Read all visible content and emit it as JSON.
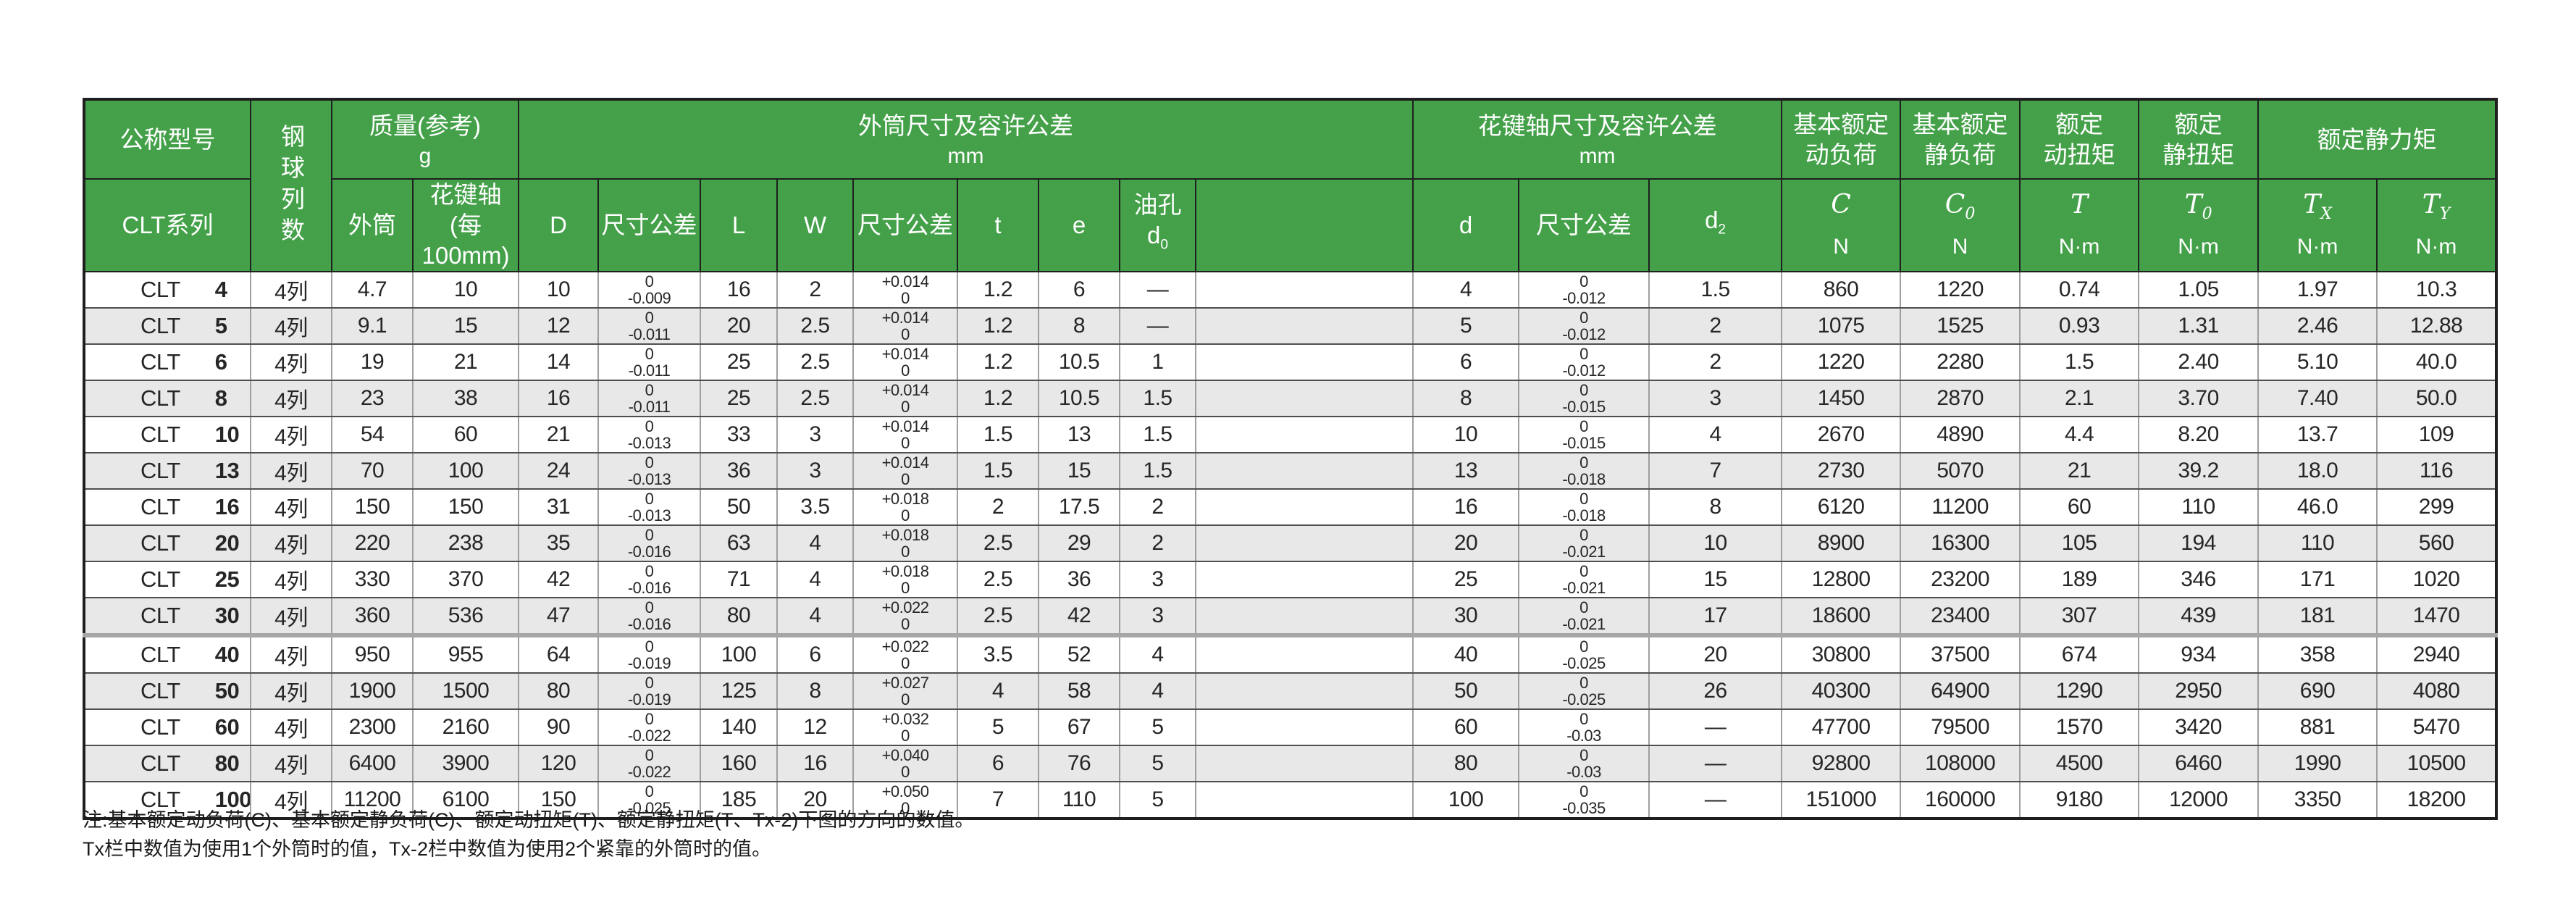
{
  "colors": {
    "header_green": "#44a149",
    "header_text": "#ffffff",
    "row_alt_gray": "#e8e8e8",
    "grid_dark": "#1f1f1f",
    "grid_gray": "#9f9f9f",
    "data_text": "#262626"
  },
  "table": {
    "model_prefix": "CLT",
    "header": {
      "model_group": "公称型号",
      "series": "CLT系列",
      "ball_rows": "钢球列数",
      "mass": {
        "title": "质量(参考)",
        "unit": "g",
        "sub_outer": "外筒",
        "sub_shaft_1": "花键轴",
        "sub_shaft_2": "(每100mm)"
      },
      "outer": {
        "title": "外筒尺寸及容许公差",
        "unit": "mm",
        "sub_D": "D",
        "sub_tol1": "尺寸公差",
        "sub_L": "L",
        "sub_W": "W",
        "sub_tol2": "尺寸公差",
        "sub_t": "t",
        "sub_e": "e",
        "sub_oil_1": "油孔",
        "sub_oil_sym": "d",
        "sub_oil_sub": "0"
      },
      "spline": {
        "title": "花键轴尺寸及容许公差",
        "unit": "mm",
        "sub_d": "d",
        "sub_tol": "尺寸公差",
        "sub_d2_sym": "d",
        "sub_d2_sub": "2"
      },
      "load_groups": [
        {
          "line1": "基本额定",
          "line2": "动负荷",
          "sym": "C",
          "sub": "",
          "unit": "N"
        },
        {
          "line1": "基本额定",
          "line2": "静负荷",
          "sym": "C",
          "sub": "0",
          "unit": "N"
        },
        {
          "line1": "额定",
          "line2": "动扭矩",
          "sym": "T",
          "sub": "",
          "unit": "N·m"
        },
        {
          "line1": "额定",
          "line2": "静扭矩",
          "sym": "T",
          "sub": "0",
          "unit": "N·m"
        }
      ],
      "static_moment": {
        "title": "额定静力矩",
        "cols": [
          {
            "sym": "T",
            "sub": "X",
            "unit": "N·m"
          },
          {
            "sym": "T",
            "sub": "Y",
            "unit": "N·m"
          }
        ]
      }
    },
    "rows": [
      {
        "model": "4",
        "cells": [
          "4列",
          "4.7",
          "10",
          "10",
          [
            "0",
            "-0.009"
          ],
          "16",
          "2",
          [
            "+0.014",
            "0"
          ],
          "1.2",
          "6",
          "—",
          "",
          "4",
          [
            "0",
            "-0.012"
          ],
          "1.5",
          "860",
          "1220",
          "0.74",
          "1.05",
          "1.97",
          "10.3"
        ]
      },
      {
        "model": "5",
        "cells": [
          "4列",
          "9.1",
          "15",
          "12",
          [
            "0",
            "-0.011"
          ],
          "20",
          "2.5",
          [
            "+0.014",
            "0"
          ],
          "1.2",
          "8",
          "—",
          "",
          "5",
          [
            "0",
            "-0.012"
          ],
          "2",
          "1075",
          "1525",
          "0.93",
          "1.31",
          "2.46",
          "12.88"
        ]
      },
      {
        "model": "6",
        "cells": [
          "4列",
          "19",
          "21",
          "14",
          [
            "0",
            "-0.011"
          ],
          "25",
          "2.5",
          [
            "+0.014",
            "0"
          ],
          "1.2",
          "10.5",
          "1",
          "",
          "6",
          [
            "0",
            "-0.012"
          ],
          "2",
          "1220",
          "2280",
          "1.5",
          "2.40",
          "5.10",
          "40.0"
        ]
      },
      {
        "model": "8",
        "cells": [
          "4列",
          "23",
          "38",
          "16",
          [
            "0",
            "-0.011"
          ],
          "25",
          "2.5",
          [
            "+0.014",
            "0"
          ],
          "1.2",
          "10.5",
          "1.5",
          "",
          "8",
          [
            "0",
            "-0.015"
          ],
          "3",
          "1450",
          "2870",
          "2.1",
          "3.70",
          "7.40",
          "50.0"
        ]
      },
      {
        "model": "10",
        "cells": [
          "4列",
          "54",
          "60",
          "21",
          [
            "0",
            "-0.013"
          ],
          "33",
          "3",
          [
            "+0.014",
            "0"
          ],
          "1.5",
          "13",
          "1.5",
          "",
          "10",
          [
            "0",
            "-0.015"
          ],
          "4",
          "2670",
          "4890",
          "4.4",
          "8.20",
          "13.7",
          "109"
        ]
      },
      {
        "model": "13",
        "cells": [
          "4列",
          "70",
          "100",
          "24",
          [
            "0",
            "-0.013"
          ],
          "36",
          "3",
          [
            "+0.014",
            "0"
          ],
          "1.5",
          "15",
          "1.5",
          "",
          "13",
          [
            "0",
            "-0.018"
          ],
          "7",
          "2730",
          "5070",
          "21",
          "39.2",
          "18.0",
          "116"
        ]
      },
      {
        "model": "16",
        "cells": [
          "4列",
          "150",
          "150",
          "31",
          [
            "0",
            "-0.013"
          ],
          "50",
          "3.5",
          [
            "+0.018",
            "0"
          ],
          "2",
          "17.5",
          "2",
          "",
          "16",
          [
            "0",
            "-0.018"
          ],
          "8",
          "6120",
          "11200",
          "60",
          "110",
          "46.0",
          "299"
        ]
      },
      {
        "model": "20",
        "cells": [
          "4列",
          "220",
          "238",
          "35",
          [
            "0",
            "-0.016"
          ],
          "63",
          "4",
          [
            "+0.018",
            "0"
          ],
          "2.5",
          "29",
          "2",
          "",
          "20",
          [
            "0",
            "-0.021"
          ],
          "10",
          "8900",
          "16300",
          "105",
          "194",
          "110",
          "560"
        ]
      },
      {
        "model": "25",
        "cells": [
          "4列",
          "330",
          "370",
          "42",
          [
            "0",
            "-0.016"
          ],
          "71",
          "4",
          [
            "+0.018",
            "0"
          ],
          "2.5",
          "36",
          "3",
          "",
          "25",
          [
            "0",
            "-0.021"
          ],
          "15",
          "12800",
          "23200",
          "189",
          "346",
          "171",
          "1020"
        ]
      },
      {
        "model": "30",
        "cells": [
          "4列",
          "360",
          "536",
          "47",
          [
            "0",
            "-0.016"
          ],
          "80",
          "4",
          [
            "+0.022",
            "0"
          ],
          "2.5",
          "42",
          "3",
          "",
          "30",
          [
            "0",
            "-0.021"
          ],
          "17",
          "18600",
          "23400",
          "307",
          "439",
          "181",
          "1470"
        ]
      },
      {
        "model": "40",
        "heavy_top": true,
        "cells": [
          "4列",
          "950",
          "955",
          "64",
          [
            "0",
            "-0.019"
          ],
          "100",
          "6",
          [
            "+0.022",
            "0"
          ],
          "3.5",
          "52",
          "4",
          "",
          "40",
          [
            "0",
            "-0.025"
          ],
          "20",
          "30800",
          "37500",
          "674",
          "934",
          "358",
          "2940"
        ]
      },
      {
        "model": "50",
        "cells": [
          "4列",
          "1900",
          "1500",
          "80",
          [
            "0",
            "-0.019"
          ],
          "125",
          "8",
          [
            "+0.027",
            "0"
          ],
          "4",
          "58",
          "4",
          "",
          "50",
          [
            "0",
            "-0.025"
          ],
          "26",
          "40300",
          "64900",
          "1290",
          "2950",
          "690",
          "4080"
        ]
      },
      {
        "model": "60",
        "cells": [
          "4列",
          "2300",
          "2160",
          "90",
          [
            "0",
            "-0.022"
          ],
          "140",
          "12",
          [
            "+0.032",
            "0"
          ],
          "5",
          "67",
          "5",
          "",
          "60",
          [
            "0",
            "-0.03"
          ],
          "—",
          "47700",
          "79500",
          "1570",
          "3420",
          "881",
          "5470"
        ]
      },
      {
        "model": "80",
        "cells": [
          "4列",
          "6400",
          "3900",
          "120",
          [
            "0",
            "-0.022"
          ],
          "160",
          "16",
          [
            "+0.040",
            "0"
          ],
          "6",
          "76",
          "5",
          "",
          "80",
          [
            "0",
            "-0.03"
          ],
          "—",
          "92800",
          "108000",
          "4500",
          "6460",
          "1990",
          "10500"
        ]
      },
      {
        "model": "100",
        "cells": [
          "4列",
          "11200",
          "6100",
          "150",
          [
            "0",
            "-0.025"
          ],
          "185",
          "20",
          [
            "+0.050",
            "0"
          ],
          "7",
          "110",
          "5",
          "",
          "100",
          [
            "0",
            "-0.035"
          ],
          "—",
          "151000",
          "160000",
          "9180",
          "12000",
          "3350",
          "18200"
        ]
      }
    ]
  },
  "notes": [
    "注:基本额定动负荷(C)、基本额定静负荷(C)、额定动扭矩(T)、额定静扭矩(T、Tx-2)下图的方向的数值。",
    "Tx栏中数值为使用1个外筒时的值，Tx-2栏中数值为使用2个紧靠的外筒时的值。"
  ]
}
